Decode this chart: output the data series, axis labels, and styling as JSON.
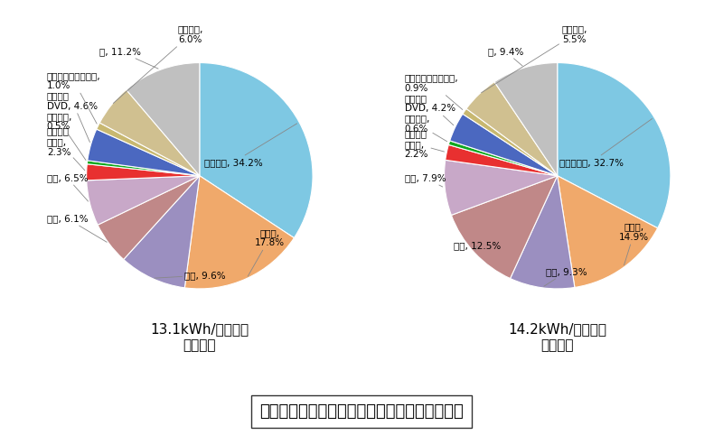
{
  "summer_values": [
    34.2,
    17.8,
    9.6,
    6.1,
    6.5,
    2.3,
    0.5,
    4.6,
    1.0,
    6.0,
    11.2
  ],
  "summer_colors": [
    "#7EC8E3",
    "#F0A96B",
    "#9B8FC0",
    "#C08888",
    "#C8A8C8",
    "#E83030",
    "#10A820",
    "#4B68C0",
    "#C8B870",
    "#D0C090",
    "#C0C0C0"
  ],
  "summer_startangle": 90,
  "summer_subtitle": "13.1kWh/世帯・日\n（夏季）",
  "winter_values": [
    32.7,
    14.9,
    9.3,
    12.5,
    7.9,
    2.2,
    0.6,
    4.2,
    0.9,
    5.5,
    9.4
  ],
  "winter_colors": [
    "#7EC8E3",
    "#F0A96B",
    "#9B8FC0",
    "#C08888",
    "#C8A8C8",
    "#E83030",
    "#10A820",
    "#4B68C0",
    "#C8B870",
    "#D0C090",
    "#C0C0C0"
  ],
  "winter_startangle": 90,
  "winter_subtitle": "14.2kWh/世帯・日\n（冬季）",
  "title": "家庭における家電製品の一日での電力消費割合",
  "background_color": "#FFFFFF",
  "title_fontsize": 13,
  "subtitle_fontsize": 11,
  "label_fontsize": 7.5
}
